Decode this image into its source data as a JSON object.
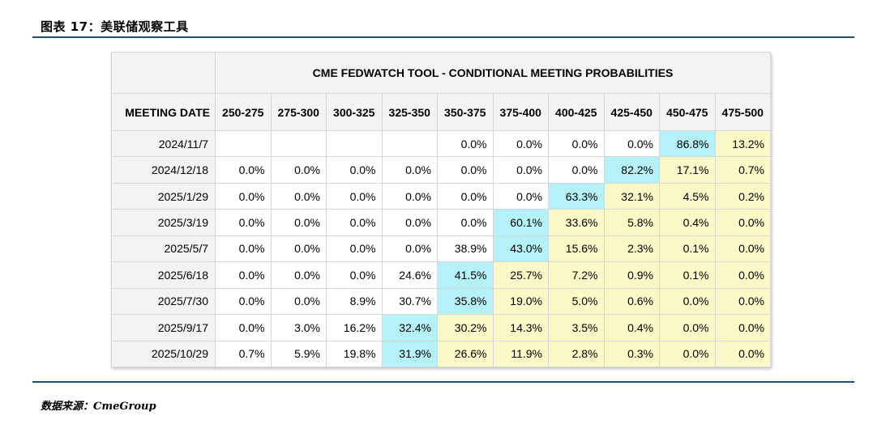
{
  "figure_title": "图表 17：美联储观察工具",
  "source": "数据来源：CmeGroup",
  "table": {
    "title": "CME FEDWATCH TOOL - CONDITIONAL MEETING PROBABILITIES",
    "date_header": "MEETING DATE",
    "columns": [
      "250-275",
      "275-300",
      "300-325",
      "325-350",
      "350-375",
      "375-400",
      "400-425",
      "425-450",
      "450-475",
      "475-500"
    ],
    "rows": [
      {
        "date": "2024/11/7",
        "values": [
          "",
          "",
          "",
          "",
          "0.0%",
          "0.0%",
          "0.0%",
          "0.0%",
          "86.8%",
          "13.2%"
        ],
        "highlight_index": 8
      },
      {
        "date": "2024/12/18",
        "values": [
          "0.0%",
          "0.0%",
          "0.0%",
          "0.0%",
          "0.0%",
          "0.0%",
          "0.0%",
          "82.2%",
          "17.1%",
          "0.7%"
        ],
        "highlight_index": 7
      },
      {
        "date": "2025/1/29",
        "values": [
          "0.0%",
          "0.0%",
          "0.0%",
          "0.0%",
          "0.0%",
          "0.0%",
          "63.3%",
          "32.1%",
          "4.5%",
          "0.2%"
        ],
        "highlight_index": 6
      },
      {
        "date": "2025/3/19",
        "values": [
          "0.0%",
          "0.0%",
          "0.0%",
          "0.0%",
          "0.0%",
          "60.1%",
          "33.6%",
          "5.8%",
          "0.4%",
          "0.0%"
        ],
        "highlight_index": 5
      },
      {
        "date": "2025/5/7",
        "values": [
          "0.0%",
          "0.0%",
          "0.0%",
          "0.0%",
          "38.9%",
          "43.0%",
          "15.6%",
          "2.3%",
          "0.1%",
          "0.0%"
        ],
        "highlight_index": 5
      },
      {
        "date": "2025/6/18",
        "values": [
          "0.0%",
          "0.0%",
          "0.0%",
          "24.6%",
          "41.5%",
          "25.7%",
          "7.2%",
          "0.9%",
          "0.1%",
          "0.0%"
        ],
        "highlight_index": 4
      },
      {
        "date": "2025/7/30",
        "values": [
          "0.0%",
          "0.0%",
          "8.9%",
          "30.7%",
          "35.8%",
          "19.0%",
          "5.0%",
          "0.6%",
          "0.0%",
          "0.0%"
        ],
        "highlight_index": 4
      },
      {
        "date": "2025/9/17",
        "values": [
          "0.0%",
          "3.0%",
          "16.2%",
          "32.4%",
          "30.2%",
          "14.3%",
          "3.5%",
          "0.4%",
          "0.0%",
          "0.0%"
        ],
        "highlight_index": 3
      },
      {
        "date": "2025/10/29",
        "values": [
          "0.7%",
          "5.9%",
          "19.8%",
          "31.9%",
          "26.6%",
          "11.9%",
          "2.8%",
          "0.3%",
          "0.0%",
          "0.0%"
        ],
        "highlight_index": 3
      }
    ],
    "colors": {
      "current": "#b5f1f8",
      "above": "#fbf9c8",
      "header": "#f3f3f3"
    }
  }
}
